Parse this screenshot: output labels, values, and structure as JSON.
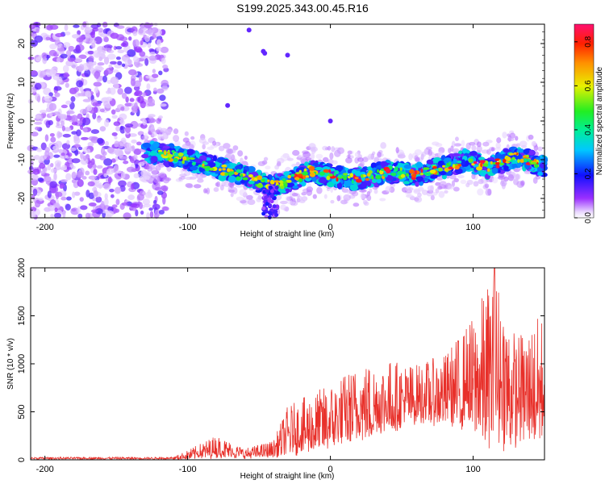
{
  "title": "S199.2025.343.00.45.R16",
  "chart_data": [
    {
      "type": "heatmap",
      "xlabel": "Height of straight line (km)",
      "ylabel": "Frequency (Hz)",
      "xlim": [
        -210,
        150
      ],
      "ylim": [
        -25,
        25
      ],
      "xticks": [
        -200,
        -100,
        0,
        100
      ],
      "yticks": [
        20,
        10,
        0,
        -10,
        -20
      ],
      "colorbar": {
        "label": "Normalized spectral amplitude",
        "range": [
          0,
          0.88
        ],
        "ticks": [
          0.0,
          0.2,
          0.4,
          0.6,
          0.8
        ]
      },
      "ridge": {
        "description_points": [
          {
            "x": -130,
            "y": -8
          },
          {
            "x": -110,
            "y": -9
          },
          {
            "x": -90,
            "y": -11
          },
          {
            "x": -70,
            "y": -13
          },
          {
            "x": -55,
            "y": -15
          },
          {
            "x": -40,
            "y": -17
          },
          {
            "x": -25,
            "y": -15
          },
          {
            "x": -15,
            "y": -13
          },
          {
            "x": 0,
            "y": -14
          },
          {
            "x": 20,
            "y": -15
          },
          {
            "x": 40,
            "y": -13
          },
          {
            "x": 60,
            "y": -14
          },
          {
            "x": 80,
            "y": -12
          },
          {
            "x": 95,
            "y": -10
          },
          {
            "x": 110,
            "y": -12
          },
          {
            "x": 130,
            "y": -9
          },
          {
            "x": 150,
            "y": -12
          }
        ]
      }
    },
    {
      "type": "line",
      "xlabel": "Height of straight line (km)",
      "ylabel": "SNR (10 * v/v)",
      "xlim": [
        -210,
        150
      ],
      "ylim": [
        0,
        2000
      ],
      "xticks": [
        -200,
        -100,
        0,
        100
      ],
      "yticks": [
        0,
        500,
        1000,
        1500,
        2000
      ],
      "series": [
        {
          "name": "SNR",
          "color": "#e8302a",
          "envelope": [
            {
              "x": -210,
              "lo": 0,
              "hi": 30
            },
            {
              "x": -110,
              "lo": 0,
              "hi": 30
            },
            {
              "x": -100,
              "lo": 0,
              "hi": 100
            },
            {
              "x": -80,
              "lo": 10,
              "hi": 260
            },
            {
              "x": -60,
              "lo": 10,
              "hi": 120
            },
            {
              "x": -40,
              "lo": 20,
              "hi": 200
            },
            {
              "x": -30,
              "lo": 30,
              "hi": 560
            },
            {
              "x": -10,
              "lo": 50,
              "hi": 720
            },
            {
              "x": 0,
              "lo": 80,
              "hi": 800
            },
            {
              "x": 20,
              "lo": 150,
              "hi": 1000
            },
            {
              "x": 40,
              "lo": 250,
              "hi": 1050
            },
            {
              "x": 60,
              "lo": 350,
              "hi": 1000
            },
            {
              "x": 80,
              "lo": 350,
              "hi": 1100
            },
            {
              "x": 100,
              "lo": 200,
              "hi": 1500
            },
            {
              "x": 115,
              "lo": 50,
              "hi": 2000
            },
            {
              "x": 130,
              "lo": 100,
              "hi": 1300
            },
            {
              "x": 150,
              "lo": 150,
              "hi": 1550
            }
          ]
        }
      ]
    }
  ],
  "colors": {
    "line": "#e8302a",
    "axis": "#000000"
  }
}
